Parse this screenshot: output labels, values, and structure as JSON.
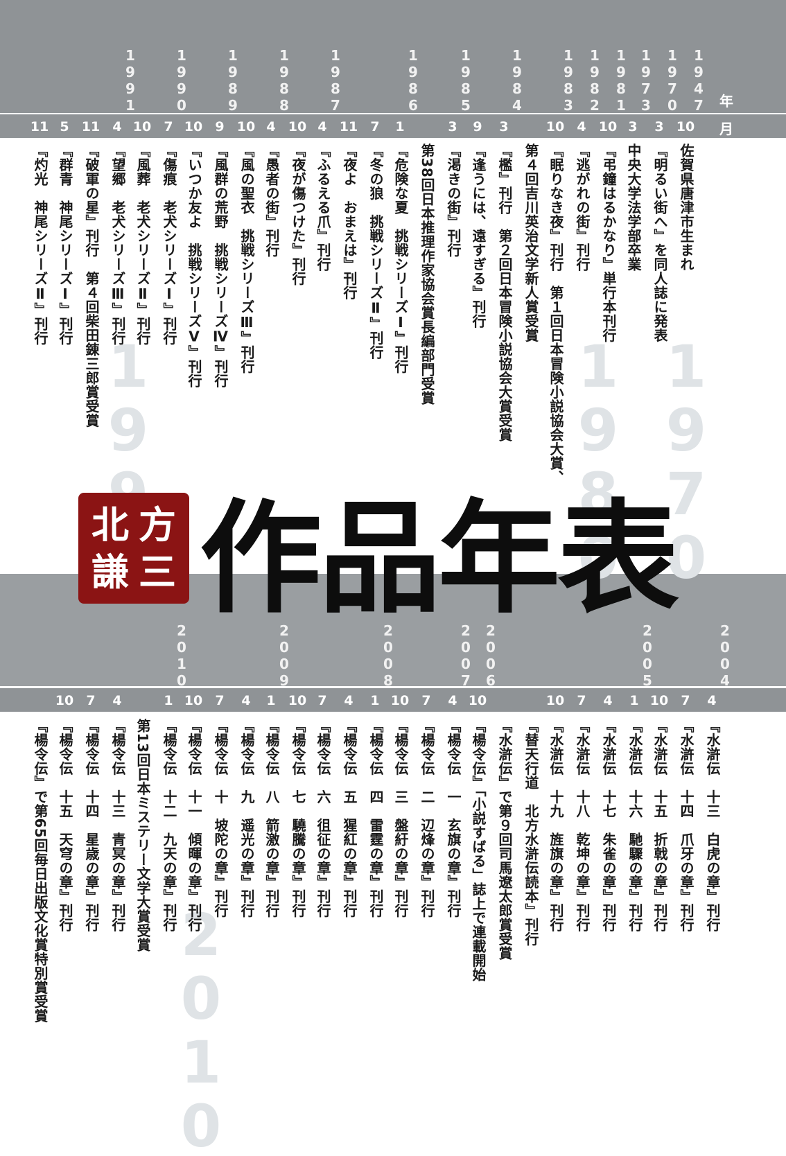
{
  "title": "作品年表",
  "author_logo": [
    "北",
    "方",
    "謙",
    "三"
  ],
  "header": {
    "year_label": "年",
    "month_label": "月"
  },
  "watermarks": [
    "1970",
    "1980",
    "1990",
    "2010"
  ],
  "top_years": [
    "1947",
    "1970",
    "1973",
    "1981",
    "1982",
    "1983",
    "1984",
    "1985",
    "1986",
    "1987",
    "1988",
    "1989",
    "1990",
    "1991"
  ],
  "top_rows": [
    {
      "month": "10",
      "event": "佐賀県唐津市生まれ"
    },
    {
      "month": "3",
      "event": "『明るい街へ』を同人誌に発表"
    },
    {
      "month": "3",
      "event": "中央大学法学部卒業"
    },
    {
      "month": "10",
      "event": "『弔鐘はるかなり』単行本刊行"
    },
    {
      "month": "4",
      "event": "『逃がれの街』刊行"
    },
    {
      "month": "10",
      "event": "『眠りなき夜』刊行　第１回日本冒険小説協会大賞、"
    },
    {
      "month": "",
      "event": "第４回吉川英治文学新人賞受賞"
    },
    {
      "month": "3",
      "event": "『檻』刊行　第２回日本冒険小説協会大賞受賞"
    },
    {
      "month": "9",
      "event": "『逢うには、遠すぎる』刊行"
    },
    {
      "month": "3",
      "event": "『渇きの街』刊行"
    },
    {
      "month": "",
      "event": "第38回日本推理作家協会賞長編部門受賞"
    },
    {
      "month": "1",
      "event": "『危険な夏　挑戦シリーズⅠ』刊行"
    },
    {
      "month": "7",
      "event": "『冬の狼　挑戦シリーズⅡ』刊行"
    },
    {
      "month": "11",
      "event": "『夜よ　おまえは』刊行"
    },
    {
      "month": "4",
      "event": "『ふるえる爪』刊行"
    },
    {
      "month": "10",
      "event": "『夜が傷つけた』刊行"
    },
    {
      "month": "4",
      "event": "『愚者の街』刊行"
    },
    {
      "month": "10",
      "event": "『風の聖衣　挑戦シリーズⅢ』刊行"
    },
    {
      "month": "9",
      "event": "『風群の荒野　挑戦シリーズⅣ』刊行"
    },
    {
      "month": "10",
      "event": "『いつか友よ　挑戦シリーズⅤ』刊行"
    },
    {
      "month": "7",
      "event": "『傷痕　老犬シリーズⅠ』刊行"
    },
    {
      "month": "10",
      "event": "『風葬　老犬シリーズⅡ』刊行"
    },
    {
      "month": "4",
      "event": "『望郷　老犬シリーズⅢ』刊行"
    },
    {
      "month": "11",
      "event": "『破軍の星』刊行　第４回柴田錬三郎賞受賞"
    },
    {
      "month": "5",
      "event": "『群青　神尾シリーズⅠ』刊行"
    },
    {
      "month": "11",
      "event": "『灼光　神尾シリーズⅡ』刊行"
    }
  ],
  "bottom_years": [
    "2004",
    "2005",
    "2006",
    "2007",
    "2008",
    "2009",
    "2010"
  ],
  "bottom_rows": [
    {
      "month": "4",
      "event": "『水滸伝　十三　白虎の章』刊行"
    },
    {
      "month": "7",
      "event": "『水滸伝　十四　爪牙の章』刊行"
    },
    {
      "month": "10",
      "event": "『水滸伝　十五　折戟の章』刊行"
    },
    {
      "month": "1",
      "event": "『水滸伝　十六　馳驟の章』刊行"
    },
    {
      "month": "4",
      "event": "『水滸伝　十七　朱雀の章』刊行"
    },
    {
      "month": "7",
      "event": "『水滸伝　十八　乾坤の章』刊行"
    },
    {
      "month": "10",
      "event": "『水滸伝　十九　旌旗の章』刊行"
    },
    {
      "month": "",
      "event": "『替天行道　北方水滸伝読本』刊行"
    },
    {
      "month": "",
      "event": "『水滸伝』で第９回司馬遼太郎賞受賞"
    },
    {
      "month": "10",
      "event": "『楊令伝』「小説すばる」誌上で連載開始"
    },
    {
      "month": "4",
      "event": "『楊令伝　一　玄旗の章』刊行"
    },
    {
      "month": "7",
      "event": "『楊令伝　二　辺烽の章』刊行"
    },
    {
      "month": "10",
      "event": "『楊令伝　三　盤紆の章』刊行"
    },
    {
      "month": "1",
      "event": "『楊令伝　四　雷霆の章』刊行"
    },
    {
      "month": "4",
      "event": "『楊令伝　五　猩紅の章』刊行"
    },
    {
      "month": "7",
      "event": "『楊令伝　六　徂征の章』刊行"
    },
    {
      "month": "10",
      "event": "『楊令伝　七　驍騰の章』刊行"
    },
    {
      "month": "1",
      "event": "『楊令伝　八　箭激の章』刊行"
    },
    {
      "month": "4",
      "event": "『楊令伝　九　遥光の章』刊行"
    },
    {
      "month": "7",
      "event": "『楊令伝　十　坡陀の章』刊行"
    },
    {
      "month": "10",
      "event": "『楊令伝　十一　傾暉の章』刊行"
    },
    {
      "month": "1",
      "event": "『楊令伝　十二　九天の章』刊行"
    },
    {
      "month": "",
      "event": "第13回日本ミステリー文学大賞受賞"
    },
    {
      "month": "4",
      "event": "『楊令伝　十三　青冥の章』刊行"
    },
    {
      "month": "7",
      "event": "『楊令伝　十四　星歳の章』刊行"
    },
    {
      "month": "10",
      "event": "『楊令伝　十五　天穹の章』刊行"
    },
    {
      "month": "",
      "event": "『楊令伝』で第65回毎日出版文化賞特別賞受賞"
    }
  ]
}
